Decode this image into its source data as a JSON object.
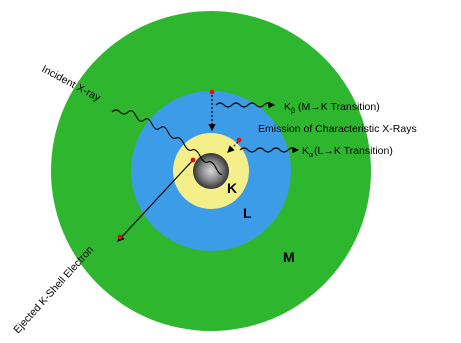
{
  "shells": {
    "k": "K",
    "l": "L",
    "m": "M"
  },
  "labels": {
    "incident": "Incident X-ray",
    "ejected": "Ejected K-Shell Electron",
    "emission": "Emission of Characteristic X-Rays",
    "kbeta_symbol": "K",
    "kbeta_sub": "β",
    "kbeta_text": "(M→K Transition)",
    "kalpha_symbol": "K",
    "kalpha_sub": "α",
    "kalpha_text": "(L→K Transition)"
  },
  "colors": {
    "m_shell": "#2fb62f",
    "l_shell": "#3d9ce8",
    "k_shell": "#f5ef8a",
    "nucleus_center": "#d8d8d8",
    "nucleus_edge": "#333333",
    "electron": "#e01010"
  }
}
